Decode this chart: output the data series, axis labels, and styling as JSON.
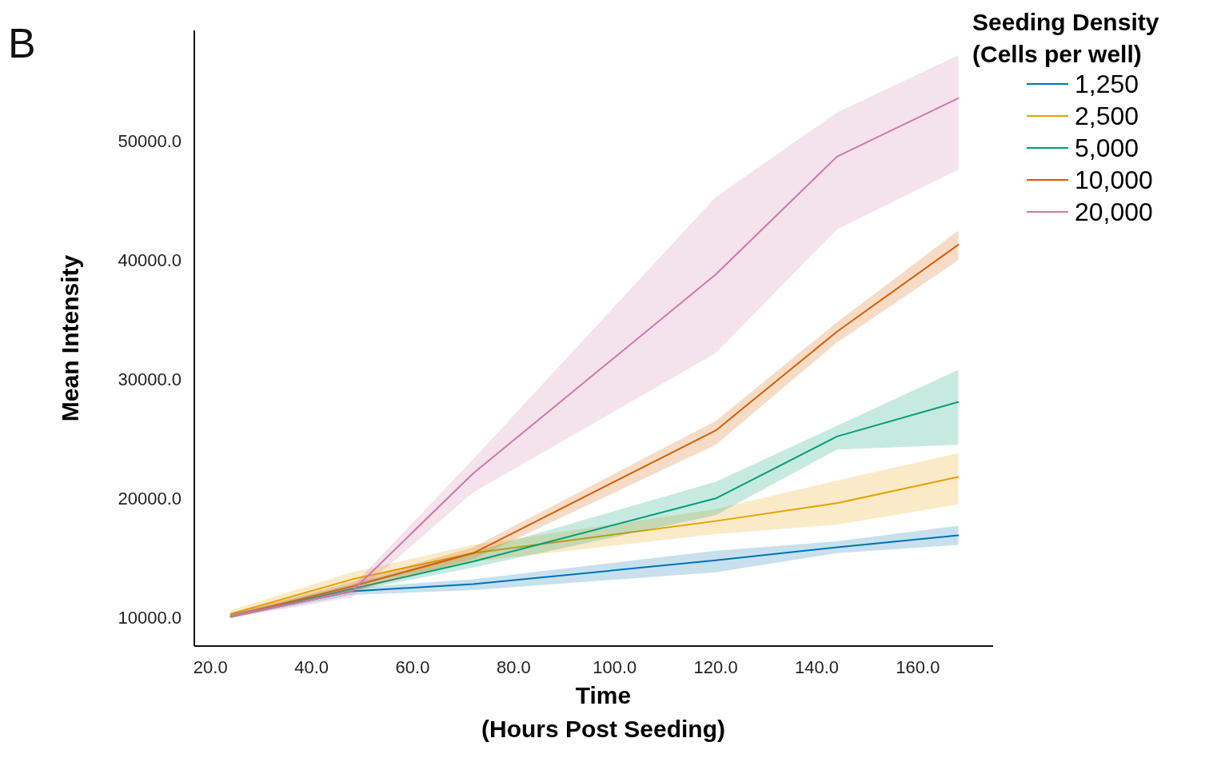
{
  "chart_data": {
    "type": "line",
    "xlabel": "Time\n(Hours Post Seeding)",
    "ylabel": "Mean Intensity",
    "legend_title": "Seeding Density\n(Cells per well)",
    "annotations": [
      "B"
    ],
    "xlim": [
      16.8,
      174.9
    ],
    "ylim": [
      7600,
      59300
    ],
    "xticks": [
      {
        "value": 20,
        "label": "20.0"
      },
      {
        "value": 40,
        "label": "40.0"
      },
      {
        "value": 60,
        "label": "60.0"
      },
      {
        "value": 80,
        "label": "80.0"
      },
      {
        "value": 100,
        "label": "100.0"
      },
      {
        "value": 120,
        "label": "120.0"
      },
      {
        "value": 140,
        "label": "140.0"
      },
      {
        "value": 160,
        "label": "160.0"
      }
    ],
    "yticks": [
      {
        "value": 10000,
        "label": "10000.0"
      },
      {
        "value": 20000,
        "label": "20000.0"
      },
      {
        "value": 30000,
        "label": "30000.0"
      },
      {
        "value": 40000,
        "label": "40000.0"
      },
      {
        "value": 50000,
        "label": "50000.0"
      }
    ],
    "grid": false,
    "legend": "top right",
    "marker": "none",
    "line_style": "solid",
    "x": [
      24,
      48,
      72,
      120,
      144,
      168
    ],
    "series": [
      {
        "name": "1,250",
        "color": "#0072b2",
        "values": [
          10100,
          12200,
          12800,
          14800,
          15900,
          16900
        ],
        "lower": [
          10000,
          11900,
          12300,
          13800,
          15400,
          16100
        ],
        "upper": [
          10300,
          12500,
          13200,
          15600,
          16400,
          17700
        ]
      },
      {
        "name": "2,500",
        "color": "#e69f00",
        "values": [
          10300,
          13200,
          15400,
          18100,
          19600,
          21800
        ],
        "lower": [
          9900,
          12700,
          14700,
          17000,
          17800,
          19500
        ],
        "upper": [
          10600,
          13800,
          16100,
          19100,
          21500,
          23800
        ]
      },
      {
        "name": "5,000",
        "color": "#009e73",
        "values": [
          10100,
          12400,
          14700,
          20000,
          25200,
          28100
        ],
        "lower": [
          9950,
          12200,
          14200,
          18600,
          24100,
          24500
        ],
        "upper": [
          10300,
          12800,
          15500,
          21400,
          26100,
          30800
        ]
      },
      {
        "name": "10,000",
        "color": "#d55e00",
        "values": [
          10100,
          12600,
          15400,
          25700,
          34000,
          41300
        ],
        "lower": [
          9950,
          12200,
          14900,
          24500,
          33100,
          40000
        ],
        "upper": [
          10300,
          13000,
          15900,
          26500,
          34800,
          42500
        ]
      },
      {
        "name": "20,000",
        "color": "#cc79a7",
        "values": [
          10100,
          12200,
          22100,
          38800,
          48700,
          53600
        ],
        "lower": [
          9950,
          11700,
          20500,
          32200,
          42600,
          47600
        ],
        "upper": [
          10300,
          12600,
          23300,
          45300,
          52400,
          57200
        ]
      }
    ]
  }
}
